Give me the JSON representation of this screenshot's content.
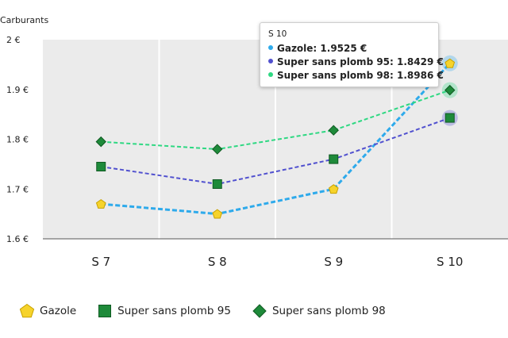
{
  "chart_data": {
    "type": "line",
    "ylabel": "Carburants",
    "categories": [
      "S 7",
      "S 8",
      "S 9",
      "S 10"
    ],
    "ylim": [
      1.6,
      2.0
    ],
    "yticks": [
      "2 €",
      "1.9 €",
      "1.8 €",
      "1.7 €",
      "1.6 €"
    ],
    "ytick_values": [
      2.0,
      1.9,
      1.8,
      1.7,
      1.6
    ],
    "grid": true,
    "legend_position": "bottom-left",
    "series": [
      {
        "name": "Gazole",
        "values": [
          1.67,
          1.65,
          1.7,
          1.9525
        ],
        "color": "#2eaaeb",
        "marker": "pentagon",
        "marker_color": "#f6d32b"
      },
      {
        "name": "Super sans plomb 95",
        "values": [
          1.745,
          1.71,
          1.76,
          1.8429
        ],
        "color": "#5151cf",
        "marker": "square",
        "marker_color": "#1e8a3a"
      },
      {
        "name": "Super sans plomb 98",
        "values": [
          1.795,
          1.78,
          1.818,
          1.8986
        ],
        "color": "#2ed882",
        "marker": "diamond",
        "marker_color": "#1e8a3a"
      }
    ],
    "tooltip": {
      "title": "S 10",
      "rows": [
        {
          "label": "Gazole: 1.9525 €",
          "color": "#2eaaeb"
        },
        {
          "label": "Super sans plomb 95: 1.8429 €",
          "color": "#5151cf"
        },
        {
          "label": "Super sans plomb 98: 1.8986 €",
          "color": "#2ed882"
        }
      ]
    }
  }
}
